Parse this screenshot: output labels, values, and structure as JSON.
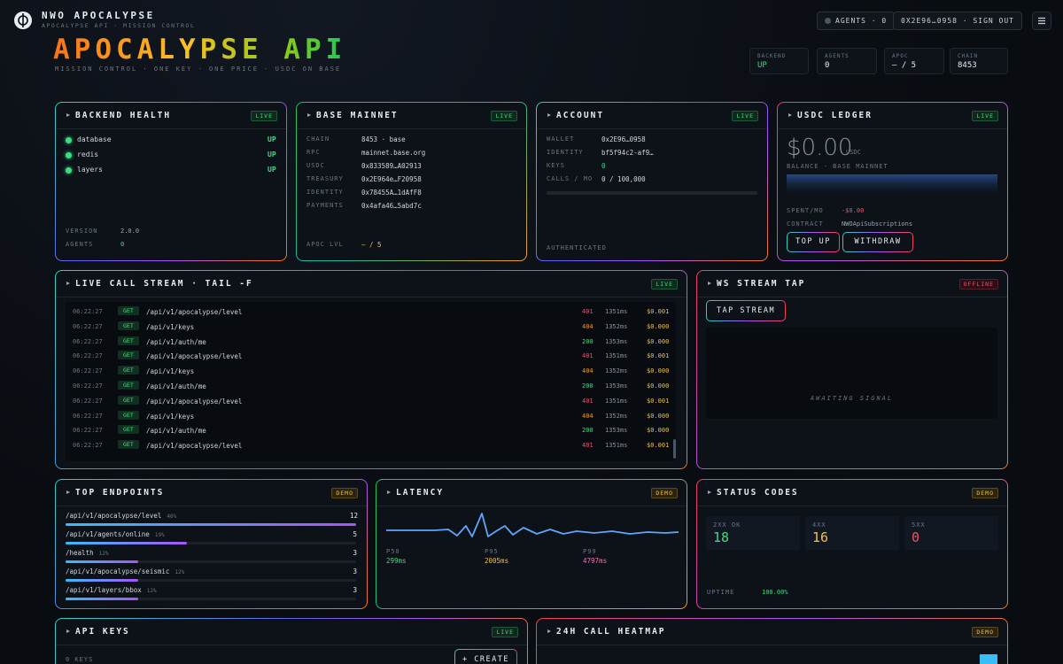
{
  "header": {
    "brand": "NWO APOCALYPSE",
    "subtitle": "APOCALYPSE API · MISSION CONTROL",
    "agents_button": "AGENTS · 0",
    "account_button": "0X2E96…0958 · SIGN OUT"
  },
  "hero": {
    "title": "APOCALYPSE API",
    "tagline": "MISSION CONTROL · ONE KEY · ONE PRICE · USDC ON BASE"
  },
  "stats": [
    {
      "label": "BACKEND",
      "value": "UP"
    },
    {
      "label": "AGENTS",
      "value": "0"
    },
    {
      "label": "APOC",
      "value": "— / 5"
    },
    {
      "label": "CHAIN",
      "value": "8453"
    }
  ],
  "backend_health": {
    "title": "BACKEND HEALTH",
    "badge": "LIVE",
    "services": [
      {
        "name": "database",
        "status": "UP"
      },
      {
        "name": "redis",
        "status": "UP"
      },
      {
        "name": "layers",
        "status": "UP"
      }
    ],
    "info": [
      {
        "label": "VERSION",
        "value": "2.0.0"
      },
      {
        "label": "AGENTS",
        "value": "0"
      }
    ]
  },
  "base_mainnet": {
    "title": "BASE MAINNET",
    "badge": "LIVE",
    "rows": [
      {
        "label": "CHAIN",
        "value": "8453 · base"
      },
      {
        "label": "RPC",
        "value": "mainnet.base.org"
      },
      {
        "label": "USDC",
        "value": "0x833589…A02913"
      },
      {
        "label": "TREASURY",
        "value": "0x2E964e…F20958"
      },
      {
        "label": "IDENTITY",
        "value": "0x78455A…1dAfF8"
      },
      {
        "label": "PAYMENTS",
        "value": "0x4afa46…5abd7c"
      }
    ],
    "apoc_label": "APOC LVL",
    "apoc_value": "— / 5"
  },
  "account": {
    "title": "ACCOUNT",
    "badge": "LIVE",
    "rows": [
      {
        "label": "WALLET",
        "value": "0x2E96…0958"
      },
      {
        "label": "IDENTITY",
        "value": "bf5f94c2-af9…"
      },
      {
        "label": "KEYS",
        "value": "0"
      },
      {
        "label": "CALLS / MO",
        "value": "0 / 100,000"
      }
    ],
    "status": "AUTHENTICATED"
  },
  "usdc_ledger": {
    "title": "USDC LEDGER",
    "badge": "LIVE",
    "balance": "$0.00",
    "unit": "USDC",
    "balance_label": "BALANCE · BASE MAINNET",
    "rows": [
      {
        "label": "SPENT/MO",
        "value": "-$0.00"
      },
      {
        "label": "CONTRACT",
        "value": "NWOApiSubscriptions"
      }
    ],
    "buttons": [
      "TOP UP",
      "WITHDRAW"
    ]
  },
  "call_stream": {
    "title": "LIVE CALL STREAM · TAIL -F",
    "badge": "LIVE",
    "rows": [
      [
        "06:22:27",
        "GET",
        "/api/v1/apocalypse/level",
        "401",
        "1351ms",
        "$0.001"
      ],
      [
        "06:22:27",
        "GET",
        "/api/v1/keys",
        "404",
        "1352ms",
        "$0.000"
      ],
      [
        "06:22:27",
        "GET",
        "/api/v1/auth/me",
        "200",
        "1353ms",
        "$0.000"
      ],
      [
        "06:22:27",
        "GET",
        "/api/v1/apocalypse/level",
        "401",
        "1351ms",
        "$0.001"
      ],
      [
        "06:22:27",
        "GET",
        "/api/v1/keys",
        "404",
        "1352ms",
        "$0.000"
      ],
      [
        "06:22:27",
        "GET",
        "/api/v1/auth/me",
        "200",
        "1353ms",
        "$0.000"
      ],
      [
        "06:22:27",
        "GET",
        "/api/v1/apocalypse/level",
        "401",
        "1351ms",
        "$0.001"
      ],
      [
        "06:22:27",
        "GET",
        "/api/v1/keys",
        "404",
        "1352ms",
        "$0.000"
      ],
      [
        "06:22:27",
        "GET",
        "/api/v1/auth/me",
        "200",
        "1353ms",
        "$0.000"
      ],
      [
        "06:22:27",
        "GET",
        "/api/v1/apocalypse/level",
        "401",
        "1351ms",
        "$0.001"
      ]
    ]
  },
  "ws_tap": {
    "title": "WS STREAM TAP",
    "badge": "OFFLINE",
    "button": "TAP STREAM",
    "placeholder": "AWAITING SIGNAL"
  },
  "top_endpoints": {
    "title": "TOP ENDPOINTS",
    "badge": "DEMO",
    "rows": [
      {
        "path": "/api/v1/apocalypse/level",
        "share": "46%",
        "count": 12
      },
      {
        "path": "/api/v1/agents/online",
        "share": "19%",
        "count": 5
      },
      {
        "path": "/health",
        "share": "12%",
        "count": 3
      },
      {
        "path": "/api/v1/apocalypse/seismic",
        "share": "12%",
        "count": 3
      },
      {
        "path": "/api/v1/layers/bbox",
        "share": "12%",
        "count": 3
      }
    ]
  },
  "latency": {
    "title": "LATENCY",
    "badge": "DEMO",
    "percentiles": [
      {
        "label": "P50",
        "value": "299ms"
      },
      {
        "label": "P95",
        "value": "2005ms"
      },
      {
        "label": "P99",
        "value": "4797ms"
      }
    ]
  },
  "status_codes": {
    "title": "STATUS CODES",
    "badge": "DEMO",
    "codes": [
      {
        "label": "2XX OK",
        "value": 18
      },
      {
        "label": "4XX",
        "value": 16
      },
      {
        "label": "5XX",
        "value": 0
      }
    ],
    "uptime_label": "UPTIME",
    "uptime": "100.00%"
  },
  "api_keys": {
    "title": "API KEYS",
    "badge": "LIVE",
    "count": "0 KEYS",
    "button": "+ CREATE"
  },
  "heatmap": {
    "title": "24H CALL HEATMAP",
    "badge": "DEMO"
  }
}
